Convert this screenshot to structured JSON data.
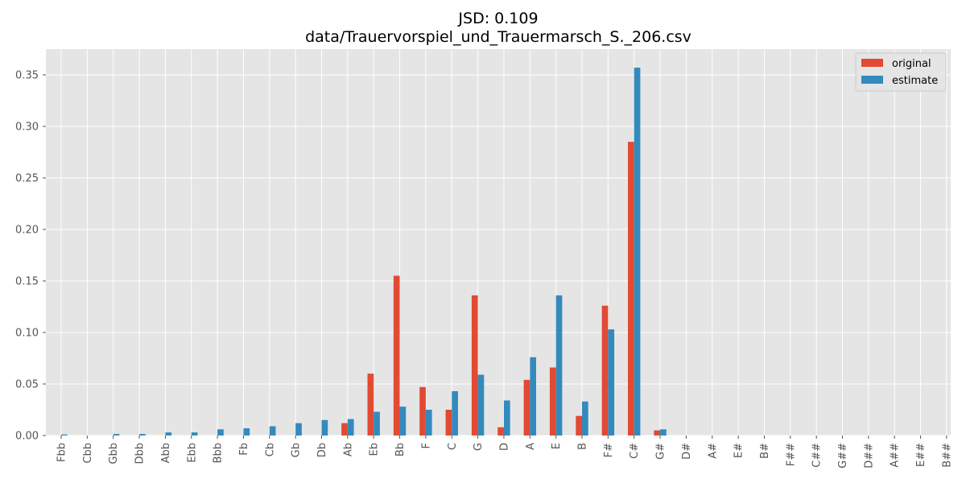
{
  "chart_data": {
    "type": "bar",
    "title": "JSD: 0.109",
    "subtitle": "data/Trauervorspiel_und_Trauermarsch_S._206.csv",
    "xlabel": "",
    "ylabel": "",
    "ylim": [
      0,
      0.375
    ],
    "yticks": [
      "0.00",
      "0.05",
      "0.10",
      "0.15",
      "0.20",
      "0.25",
      "0.30",
      "0.35"
    ],
    "grid": true,
    "legend_position": "top-right",
    "categories": [
      "Fbb",
      "Cbb",
      "Gbb",
      "Dbb",
      "Abb",
      "Ebb",
      "Bbb",
      "Fb",
      "Cb",
      "Gb",
      "Db",
      "Ab",
      "Eb",
      "Bb",
      "F",
      "C",
      "G",
      "D",
      "A",
      "E",
      "B",
      "F#",
      "C#",
      "G#",
      "D#",
      "A#",
      "E#",
      "B#",
      "F##",
      "C##",
      "G##",
      "D##",
      "A##",
      "E##",
      "B##"
    ],
    "series": [
      {
        "name": "original",
        "color": "#E24A33",
        "values": [
          0,
          0,
          0,
          0,
          0,
          0,
          0,
          0,
          0,
          0,
          0,
          0.012,
          0.06,
          0.155,
          0.047,
          0.025,
          0.136,
          0.008,
          0.054,
          0.066,
          0.019,
          0.126,
          0.285,
          0.005,
          0,
          0,
          0,
          0,
          0,
          0,
          0,
          0,
          0,
          0,
          0
        ]
      },
      {
        "name": "estimate",
        "color": "#348ABD",
        "values": [
          0.001,
          0,
          0.0015,
          0.0015,
          0.003,
          0.003,
          0.006,
          0.007,
          0.009,
          0.012,
          0.015,
          0.016,
          0.023,
          0.028,
          0.025,
          0.043,
          0.059,
          0.034,
          0.076,
          0.136,
          0.033,
          0.103,
          0.357,
          0.006,
          0,
          0,
          0,
          0,
          0,
          0,
          0,
          0,
          0,
          0,
          0
        ]
      }
    ]
  }
}
